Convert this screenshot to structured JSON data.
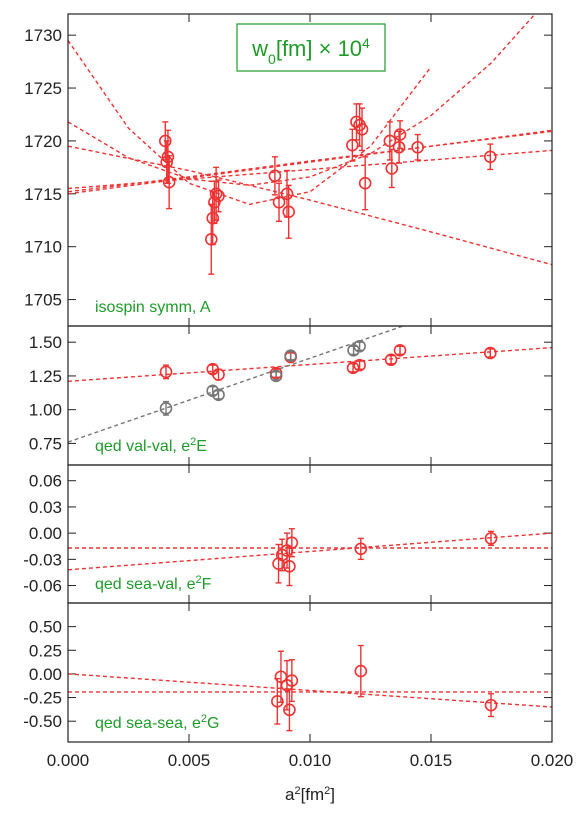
{
  "chart_data": [
    {
      "type": "scatter",
      "panel_label": "isospin symm, A",
      "title_box": {
        "text": "w",
        "sub": "0",
        "unit": "[fm] × 10",
        "sup": "4"
      },
      "xlim": [
        0.0,
        0.02
      ],
      "ylim": [
        1702.5,
        1732
      ],
      "yticks": [
        1705,
        1710,
        1715,
        1720,
        1725,
        1730
      ],
      "ytick_labels": [
        "1705",
        "1710",
        "1715",
        "1720",
        "1725",
        "1730"
      ],
      "series": [
        {
          "color": "#ee3333",
          "points": [
            {
              "x": 0.00402,
              "y": 1720.0,
              "err": 1.8
            },
            {
              "x": 0.00408,
              "y": 1718.0,
              "err": 2.0
            },
            {
              "x": 0.00413,
              "y": 1718.5,
              "err": 2.5
            },
            {
              "x": 0.00418,
              "y": 1716.1,
              "err": 2.5
            },
            {
              "x": 0.00592,
              "y": 1710.7,
              "err": 3.3
            },
            {
              "x": 0.00598,
              "y": 1712.7,
              "err": 2.5
            },
            {
              "x": 0.00605,
              "y": 1714.2,
              "err": 2.0
            },
            {
              "x": 0.00612,
              "y": 1715.0,
              "err": 2.5
            },
            {
              "x": 0.00622,
              "y": 1714.8,
              "err": 1.5
            },
            {
              "x": 0.00855,
              "y": 1716.7,
              "err": 1.8
            },
            {
              "x": 0.00872,
              "y": 1714.2,
              "err": 1.8
            },
            {
              "x": 0.00905,
              "y": 1715.0,
              "err": 2.2
            },
            {
              "x": 0.00912,
              "y": 1713.3,
              "err": 2.5
            },
            {
              "x": 0.01175,
              "y": 1719.6,
              "err": 1.5
            },
            {
              "x": 0.01192,
              "y": 1721.8,
              "err": 1.7
            },
            {
              "x": 0.01205,
              "y": 1721.5,
              "err": 2.0
            },
            {
              "x": 0.01215,
              "y": 1721.1,
              "err": 2.0
            },
            {
              "x": 0.01228,
              "y": 1716.0,
              "err": 2.5
            },
            {
              "x": 0.0133,
              "y": 1720.0,
              "err": 1.8
            },
            {
              "x": 0.01338,
              "y": 1717.4,
              "err": 1.8
            },
            {
              "x": 0.01368,
              "y": 1719.4,
              "err": 1.5
            },
            {
              "x": 0.01372,
              "y": 1720.6,
              "err": 1.3
            },
            {
              "x": 0.01445,
              "y": 1719.4,
              "err": 1.2
            },
            {
              "x": 0.01745,
              "y": 1718.5,
              "err": 1.2
            }
          ]
        }
      ],
      "fit_curves": [
        {
          "color": "#ee3333",
          "x": [
            0.0,
            0.005,
            0.01,
            0.015,
            0.02
          ],
          "y": [
            1715.0,
            1716.5,
            1718.0,
            1719.5,
            1721.0
          ]
        },
        {
          "color": "#ee3333",
          "x": [
            0.0,
            0.005,
            0.01,
            0.015,
            0.02
          ],
          "y": [
            1715.2,
            1716.6,
            1718.1,
            1719.5,
            1720.9
          ]
        },
        {
          "color": "#ee3333",
          "x": [
            0.0,
            0.005,
            0.01,
            0.015,
            0.02
          ],
          "y": [
            1715.5,
            1716.4,
            1717.3,
            1718.2,
            1719.1
          ]
        },
        {
          "color": "#ee3333",
          "x": [
            0.0,
            0.005,
            0.01,
            0.015,
            0.02
          ],
          "y": [
            1719.5,
            1717.2,
            1714.4,
            1711.4,
            1708.3
          ]
        },
        {
          "color": "#ee3333",
          "x": [
            0.0,
            0.0025,
            0.005,
            0.0075,
            0.01,
            0.0125,
            0.015,
            0.0175,
            0.02
          ],
          "y": [
            1721.8,
            1718.4,
            1716.4,
            1715.8,
            1716.6,
            1718.8,
            1722.4,
            1727.4,
            1733.8
          ]
        },
        {
          "color": "#ee3333",
          "x": [
            0.0,
            0.0025,
            0.005,
            0.0075,
            0.01,
            0.0125,
            0.015
          ],
          "y": [
            1729.5,
            1721.2,
            1716.0,
            1714.0,
            1715.2,
            1719.5,
            1727.0
          ]
        }
      ],
      "grid": false
    },
    {
      "type": "scatter",
      "panel_label": "qed val-val, e",
      "panel_label_sup": "2",
      "panel_label_tail": "E",
      "xlim": [
        0.0,
        0.02
      ],
      "ylim": [
        0.59,
        1.62
      ],
      "yticks": [
        0.75,
        1.0,
        1.25,
        1.5
      ],
      "ytick_labels": [
        "0.75",
        "1.00",
        "1.25",
        "1.50"
      ],
      "series": [
        {
          "color": "#ee3333",
          "points": [
            {
              "x": 0.00405,
              "y": 1.28,
              "err": 0.05
            },
            {
              "x": 0.00598,
              "y": 1.3,
              "err": 0.03
            },
            {
              "x": 0.00622,
              "y": 1.26,
              "err": 0.04
            },
            {
              "x": 0.0086,
              "y": 1.27,
              "err": 0.03
            },
            {
              "x": 0.0092,
              "y": 1.39,
              "err": 0.03
            },
            {
              "x": 0.01178,
              "y": 1.31,
              "err": 0.03
            },
            {
              "x": 0.01205,
              "y": 1.33,
              "err": 0.03
            },
            {
              "x": 0.01335,
              "y": 1.37,
              "err": 0.03
            },
            {
              "x": 0.01372,
              "y": 1.44,
              "err": 0.03
            },
            {
              "x": 0.01745,
              "y": 1.42,
              "err": 0.03
            }
          ]
        },
        {
          "color": "#777777",
          "points": [
            {
              "x": 0.00405,
              "y": 1.01,
              "err": 0.05
            },
            {
              "x": 0.00598,
              "y": 1.14,
              "err": 0.03
            },
            {
              "x": 0.00622,
              "y": 1.11,
              "err": 0.03
            },
            {
              "x": 0.0086,
              "y": 1.25,
              "err": 0.03
            },
            {
              "x": 0.0092,
              "y": 1.4,
              "err": 0.03
            },
            {
              "x": 0.0118,
              "y": 1.44,
              "err": 0.03
            },
            {
              "x": 0.01205,
              "y": 1.47,
              "err": 0.03
            }
          ]
        }
      ],
      "fit_curves": [
        {
          "color": "#ee3333",
          "x": [
            0.0,
            0.02
          ],
          "y": [
            1.21,
            1.46
          ]
        },
        {
          "color": "#777777",
          "x": [
            0.0,
            0.014
          ],
          "y": [
            0.76,
            1.63
          ]
        }
      ],
      "grid": false
    },
    {
      "type": "scatter",
      "panel_label": "qed sea-val, e",
      "panel_label_sup": "2",
      "panel_label_tail": "F",
      "xlim": [
        0.0,
        0.02
      ],
      "ylim": [
        -0.08,
        0.078
      ],
      "yticks": [
        -0.06,
        -0.03,
        0.0,
        0.03,
        0.06
      ],
      "ytick_labels": [
        "-0.06",
        "-0.03",
        "0.00",
        "0.03",
        "0.06"
      ],
      "series": [
        {
          "color": "#ee3333",
          "points": [
            {
              "x": 0.0087,
              "y": -0.035,
              "err": 0.022
            },
            {
              "x": 0.00885,
              "y": -0.025,
              "err": 0.018
            },
            {
              "x": 0.00905,
              "y": -0.02,
              "err": 0.02
            },
            {
              "x": 0.00915,
              "y": -0.038,
              "err": 0.022
            },
            {
              "x": 0.00925,
              "y": -0.011,
              "err": 0.016
            },
            {
              "x": 0.0121,
              "y": -0.018,
              "err": 0.012
            },
            {
              "x": 0.01748,
              "y": -0.006,
              "err": 0.008
            }
          ]
        }
      ],
      "fit_curves": [
        {
          "color": "#ee3333",
          "x": [
            0.0,
            0.02
          ],
          "y": [
            -0.042,
            0.0
          ]
        },
        {
          "color": "#ee3333",
          "x": [
            0.0,
            0.02
          ],
          "y": [
            -0.017,
            -0.017
          ]
        }
      ],
      "grid": false
    },
    {
      "type": "scatter",
      "panel_label": "qed sea-sea, e",
      "panel_label_sup": "2",
      "panel_label_tail": "G",
      "xlim": [
        0.0,
        0.02
      ],
      "ylim": [
        -0.72,
        0.75
      ],
      "yticks": [
        -0.5,
        -0.25,
        0.0,
        0.25,
        0.5
      ],
      "ytick_labels": [
        "-0.50",
        "-0.25",
        "0.00",
        "0.25",
        "0.50"
      ],
      "series": [
        {
          "color": "#ee3333",
          "points": [
            {
              "x": 0.00865,
              "y": -0.29,
              "err": 0.24
            },
            {
              "x": 0.0088,
              "y": -0.03,
              "err": 0.27
            },
            {
              "x": 0.00905,
              "y": -0.12,
              "err": 0.26
            },
            {
              "x": 0.00915,
              "y": -0.38,
              "err": 0.22
            },
            {
              "x": 0.00925,
              "y": -0.07,
              "err": 0.22
            },
            {
              "x": 0.0121,
              "y": 0.03,
              "err": 0.27
            },
            {
              "x": 0.01748,
              "y": -0.33,
              "err": 0.12
            }
          ]
        }
      ],
      "fit_curves": [
        {
          "color": "#ee3333",
          "x": [
            0.0,
            0.02
          ],
          "y": [
            0.0,
            -0.35
          ]
        },
        {
          "color": "#ee3333",
          "x": [
            0.0,
            0.02
          ],
          "y": [
            -0.19,
            -0.19
          ]
        }
      ],
      "grid": false
    }
  ],
  "x_axis": {
    "label": "a",
    "label_sup": "2",
    "label_tail": "[fm",
    "label_tail_sup": "2",
    "label_end": "]",
    "ticks": [
      0.0,
      0.005,
      0.01,
      0.015,
      0.02
    ],
    "tick_labels": [
      "0.000",
      "0.005",
      "0.010",
      "0.015",
      "0.020"
    ]
  },
  "colors": {
    "accent": "#ee3333",
    "secondary": "#777777",
    "label": "#1f9b2a"
  }
}
